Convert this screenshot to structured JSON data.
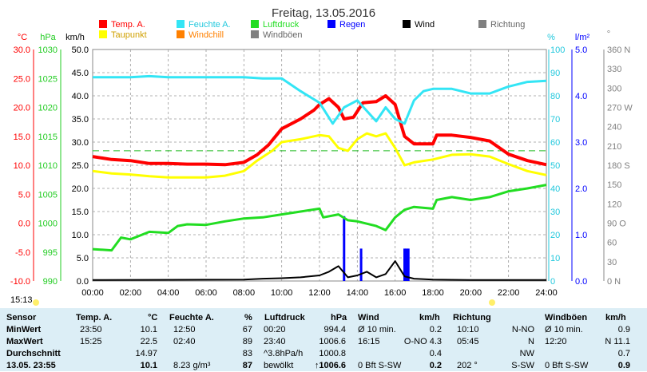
{
  "title": "Freitag, 13.05.2016",
  "time_label": "15:13",
  "legend": [
    {
      "label": "Temp. A.",
      "color": "#ff0000"
    },
    {
      "label": "Feuchte A.",
      "color": "#33e5f5"
    },
    {
      "label": "Luftdruck",
      "color": "#22dd22"
    },
    {
      "label": "Regen",
      "color": "#0000ff"
    },
    {
      "label": "Wind",
      "color": "#000000"
    },
    {
      "label": "Richtung",
      "color": "#808080"
    },
    {
      "label": "Taupunkt",
      "color": "#ffff00"
    },
    {
      "label": "Windchill",
      "color": "#ff8000"
    },
    {
      "label": "Windböen",
      "color": "#808080"
    }
  ],
  "axes": {
    "temp_unit": "°C",
    "hpa_unit": "hPa",
    "kmh_unit": "km/h",
    "pct_unit": "%",
    "rain_unit": "l/m²",
    "deg_unit": "°",
    "temp_ticks": [
      "30.0",
      "25.0",
      "20.0",
      "15.0",
      "10.0",
      "5.0",
      "0.0",
      "-5.0",
      "-10.0"
    ],
    "hpa_ticks": [
      "1030",
      "1025",
      "1020",
      "1015",
      "1010",
      "1005",
      "1000",
      "995",
      "990"
    ],
    "kmh_ticks": [
      "50.0",
      "45.0",
      "40.0",
      "35.0",
      "30.0",
      "25.0",
      "20.0",
      "15.0",
      "10.0",
      "5.0",
      "0.0"
    ],
    "pct_ticks": [
      "100",
      "90",
      "80",
      "70",
      "60",
      "50",
      "40",
      "30",
      "20",
      "10",
      "0"
    ],
    "rain_ticks": [
      "5.0",
      "4.0",
      "3.0",
      "2.0",
      "1.0",
      "0.0"
    ],
    "deg_ticks": [
      "360 N",
      "330",
      "300",
      "270 W",
      "240",
      "210",
      "180 S",
      "150",
      "120",
      "90 O",
      "60",
      "30",
      "0 N"
    ],
    "x_ticks": [
      "00:00",
      "02:00",
      "04:00",
      "06:00",
      "08:00",
      "10:00",
      "12:00",
      "14:00",
      "16:00",
      "18:00",
      "20:00",
      "22:00",
      "24:00"
    ]
  },
  "chart_data": {
    "type": "line",
    "title": "Freitag, 13.05.2016",
    "x_unit": "hour",
    "x_range": [
      0,
      24
    ],
    "series": [
      {
        "name": "Temp. A.",
        "unit": "°C",
        "color": "#ff0000",
        "points": [
          [
            0,
            11.5
          ],
          [
            1,
            11.0
          ],
          [
            2,
            10.8
          ],
          [
            3,
            10.3
          ],
          [
            4,
            10.3
          ],
          [
            5,
            10.2
          ],
          [
            6,
            10.2
          ],
          [
            7,
            10.1
          ],
          [
            8,
            10.5
          ],
          [
            8.7,
            11.8
          ],
          [
            9.3,
            13.5
          ],
          [
            10,
            16.3
          ],
          [
            11,
            18.0
          ],
          [
            11.7,
            19.5
          ],
          [
            12,
            20.5
          ],
          [
            12.5,
            21.5
          ],
          [
            13,
            20.0
          ],
          [
            13.3,
            18.0
          ],
          [
            13.8,
            18.3
          ],
          [
            14.3,
            20.8
          ],
          [
            15,
            21.0
          ],
          [
            15.5,
            22.0
          ],
          [
            16,
            20.5
          ],
          [
            16.5,
            15.0
          ],
          [
            17,
            13.7
          ],
          [
            18,
            13.7
          ],
          [
            18.2,
            15.2
          ],
          [
            19,
            15.2
          ],
          [
            20,
            14.8
          ],
          [
            21,
            14.2
          ],
          [
            22,
            11.9
          ],
          [
            23,
            10.8
          ],
          [
            24,
            10.1
          ]
        ]
      },
      {
        "name": "Taupunkt",
        "unit": "°C",
        "color": "#ffff00",
        "points": [
          [
            0,
            9.0
          ],
          [
            1,
            8.6
          ],
          [
            2,
            8.4
          ],
          [
            3,
            8.1
          ],
          [
            4,
            7.9
          ],
          [
            5,
            7.9
          ],
          [
            6,
            7.9
          ],
          [
            7,
            8.2
          ],
          [
            8,
            9.0
          ],
          [
            8.7,
            10.8
          ],
          [
            9.5,
            12.5
          ],
          [
            10,
            14.0
          ],
          [
            11,
            14.5
          ],
          [
            12,
            15.2
          ],
          [
            12.5,
            15.0
          ],
          [
            13,
            13.0
          ],
          [
            13.5,
            12.5
          ],
          [
            14,
            14.5
          ],
          [
            14.5,
            15.5
          ],
          [
            15,
            15.0
          ],
          [
            15.5,
            15.5
          ],
          [
            16,
            13.0
          ],
          [
            16.5,
            10.0
          ],
          [
            17,
            10.5
          ],
          [
            18,
            11.0
          ],
          [
            19,
            11.8
          ],
          [
            20,
            11.9
          ],
          [
            21,
            11.5
          ],
          [
            22,
            10.2
          ],
          [
            23,
            9.0
          ],
          [
            24,
            8.3
          ]
        ]
      },
      {
        "name": "Feuchte A.",
        "unit": "%",
        "color": "#33e5f5",
        "points": [
          [
            0,
            88
          ],
          [
            2,
            88
          ],
          [
            3,
            88.5
          ],
          [
            4,
            88
          ],
          [
            6,
            88
          ],
          [
            7,
            88
          ],
          [
            8,
            88
          ],
          [
            9,
            87.5
          ],
          [
            10,
            87.5
          ],
          [
            11,
            82
          ],
          [
            12,
            77
          ],
          [
            12.7,
            68
          ],
          [
            13.3,
            75
          ],
          [
            14,
            78
          ],
          [
            15,
            69
          ],
          [
            15.5,
            75
          ],
          [
            16,
            70
          ],
          [
            16.5,
            68
          ],
          [
            17,
            78
          ],
          [
            17.5,
            82
          ],
          [
            18,
            83
          ],
          [
            19,
            83
          ],
          [
            20,
            81
          ],
          [
            21,
            81
          ],
          [
            22,
            84
          ],
          [
            23,
            86
          ],
          [
            24,
            86.5
          ]
        ]
      },
      {
        "name": "Luftdruck",
        "unit": "hPa",
        "color": "#22dd22",
        "points": [
          [
            0,
            995.5
          ],
          [
            1,
            995.3
          ],
          [
            1.5,
            997.5
          ],
          [
            2,
            997.2
          ],
          [
            3,
            998.5
          ],
          [
            4,
            998.3
          ],
          [
            4.5,
            999.5
          ],
          [
            5,
            999.8
          ],
          [
            6,
            999.7
          ],
          [
            7,
            1000.3
          ],
          [
            8,
            1000.8
          ],
          [
            9,
            1001.0
          ],
          [
            10,
            1001.5
          ],
          [
            11,
            1002.0
          ],
          [
            12,
            1002.5
          ],
          [
            12.2,
            1001.0
          ],
          [
            13,
            1001.5
          ],
          [
            13.5,
            1000.5
          ],
          [
            14,
            1000.3
          ],
          [
            15,
            999.5
          ],
          [
            15.5,
            998.8
          ],
          [
            16,
            1001.0
          ],
          [
            16.5,
            1002.3
          ],
          [
            17,
            1002.8
          ],
          [
            18,
            1002.5
          ],
          [
            18.2,
            1004.0
          ],
          [
            19,
            1004.5
          ],
          [
            20,
            1004.0
          ],
          [
            21,
            1004.5
          ],
          [
            22,
            1005.5
          ],
          [
            23,
            1006.0
          ],
          [
            24,
            1006.6
          ]
        ]
      },
      {
        "name": "Wind",
        "unit": "km/h",
        "color": "#000000",
        "points": [
          [
            0,
            0.2
          ],
          [
            8,
            0.3
          ],
          [
            9,
            0.5
          ],
          [
            10,
            0.6
          ],
          [
            11,
            0.8
          ],
          [
            12,
            1.2
          ],
          [
            12.5,
            2.0
          ],
          [
            13,
            3.2
          ],
          [
            13.5,
            0.8
          ],
          [
            14,
            1.2
          ],
          [
            14.5,
            2.0
          ],
          [
            15,
            0.8
          ],
          [
            15.5,
            1.5
          ],
          [
            16,
            4.3
          ],
          [
            16.5,
            1.0
          ],
          [
            17,
            0.5
          ],
          [
            18,
            0.3
          ],
          [
            20,
            0.2
          ],
          [
            24,
            0.2
          ]
        ]
      },
      {
        "name": "Regen",
        "unit": "l/m²",
        "color": "#0000ff",
        "bars": [
          [
            13.3,
            1.4
          ],
          [
            14.2,
            0.7
          ],
          [
            16.5,
            0.7
          ],
          [
            16.6,
            0.7
          ],
          [
            16.7,
            0.7
          ]
        ]
      }
    ],
    "reference_lines": [
      {
        "unit": "°C",
        "value": 12.5,
        "color": "#22bb22",
        "style": "dashed"
      }
    ],
    "grid": true
  },
  "table": {
    "headers": [
      {
        "label": "Sensor"
      },
      {
        "label": "Temp. A.",
        "unit": "°C"
      },
      {
        "label": "Feuchte A.",
        "unit": "%"
      },
      {
        "label": "Luftdruck",
        "unit": "hPa"
      },
      {
        "label": "Wind",
        "unit": "km/h"
      },
      {
        "label": "Richtung"
      },
      {
        "label": "Windböen",
        "unit": "km/h"
      }
    ],
    "rows": [
      {
        "label": "MinWert",
        "temp_time": "23:50",
        "temp": "10.1",
        "hum_time": "12:50",
        "hum": "67",
        "pres_time": "00:20",
        "pres": "994.4",
        "wind_time": "Ø 10 min.",
        "wind": "0.2",
        "dir_time": "10:10",
        "dir": "N-NO",
        "gust_time": "Ø 10 min.",
        "gust": "0.9"
      },
      {
        "label": "MaxWert",
        "temp_time": "15:25",
        "temp": "22.5",
        "hum_time": "02:40",
        "hum": "89",
        "pres_time": "23:40",
        "pres": "1006.6",
        "wind_time": "16:15",
        "wind": "O-NO 4.3",
        "dir_time": "05:45",
        "dir": "N",
        "gust_time": "12:20",
        "gust": "N 11.1"
      },
      {
        "label": "Durchschnitt",
        "temp_time": "",
        "temp": "14.97",
        "hum_time": "",
        "hum": "83",
        "pres_time": "^3.8hPa/h",
        "pres": "1000.8",
        "wind_time": "",
        "wind": "0.4",
        "dir_time": "",
        "dir": "NW",
        "gust_time": "",
        "gust": "0.7"
      },
      {
        "label": "13.05. 23:55",
        "temp_time": "",
        "temp": "10.1",
        "hum_time": "8.23 g/m³",
        "hum": "87",
        "pres_time": "bewölkt",
        "pres": "↑1006.6",
        "wind_time": "0 Bft S-SW",
        "wind": "0.2",
        "dir_time": "202 °",
        "dir": "S-SW",
        "gust_time": "0 Bft S-SW",
        "gust": "0.9"
      }
    ]
  }
}
